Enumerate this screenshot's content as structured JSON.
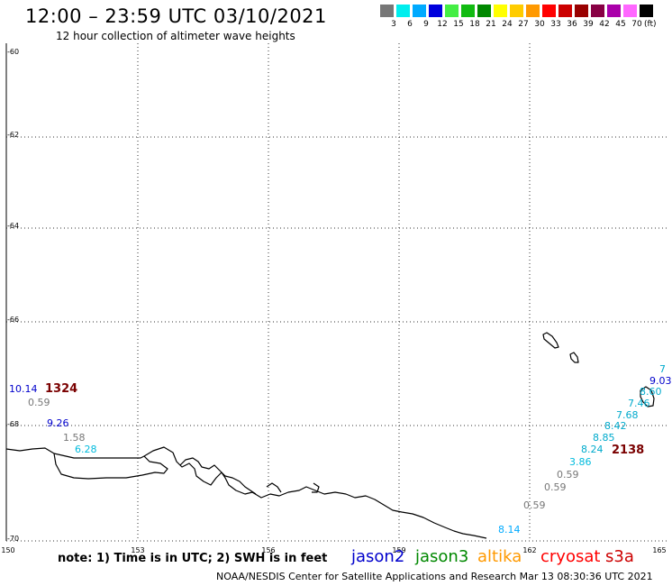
{
  "header": {
    "title": "12:00 – 23:59 UTC 03/10/2021",
    "subtitle": "12 hour collection of altimeter wave heights"
  },
  "legend": {
    "swatches": [
      {
        "label": "3",
        "color": "#777777"
      },
      {
        "label": "6",
        "color": "#00eeee"
      },
      {
        "label": "9",
        "color": "#00aaff"
      },
      {
        "label": "12",
        "color": "#0000dd"
      },
      {
        "label": "15",
        "color": "#44ee44"
      },
      {
        "label": "18",
        "color": "#11bb11"
      },
      {
        "label": "21",
        "color": "#008800"
      },
      {
        "label": "24",
        "color": "#ffff00"
      },
      {
        "label": "27",
        "color": "#ffcc00"
      },
      {
        "label": "30",
        "color": "#ff9900"
      },
      {
        "label": "33",
        "color": "#ff0000"
      },
      {
        "label": "36",
        "color": "#cc0000"
      },
      {
        "label": "39",
        "color": "#990000"
      },
      {
        "label": "42",
        "color": "#880044"
      },
      {
        "label": "45",
        "color": "#aa00aa"
      },
      {
        "label": "70",
        "color": "#ff66ff"
      },
      {
        "label": "",
        "color": "#000000"
      }
    ],
    "unit": "(ft)"
  },
  "axes": {
    "lat_labels": [
      "-60",
      "-62",
      "-64",
      "-66",
      "-68",
      "-70"
    ],
    "lon_labels": [
      "150",
      "153",
      "156",
      "159",
      "162",
      "165"
    ]
  },
  "observations": [
    {
      "value": "10.14",
      "color": "#0000cc"
    },
    {
      "value": "0.59",
      "color": "#777777"
    },
    {
      "value": "9.26",
      "color": "#0000cc"
    },
    {
      "value": "1.58",
      "color": "#777777"
    },
    {
      "value": "6.28",
      "color": "#00bbdd"
    },
    {
      "value": "8.14",
      "color": "#00aaff"
    },
    {
      "value": "0.59",
      "color": "#777777"
    },
    {
      "value": "0.59",
      "color": "#777777"
    },
    {
      "value": "0.59",
      "color": "#777777"
    },
    {
      "value": "3.86",
      "color": "#00bbdd"
    },
    {
      "value": "8.24",
      "color": "#00aacc"
    },
    {
      "value": "8.85",
      "color": "#00aacc"
    },
    {
      "value": "8.42",
      "color": "#00aacc"
    },
    {
      "value": "7.68",
      "color": "#00aacc"
    },
    {
      "value": "7.46",
      "color": "#00aacc"
    },
    {
      "value": "8.60",
      "color": "#00aacc"
    },
    {
      "value": "9.03",
      "color": "#0000cc"
    },
    {
      "value": "7",
      "color": "#00aacc"
    }
  ],
  "passes": [
    "1324",
    "2138"
  ],
  "footer": {
    "note": "note: 1) Time is in UTC; 2) SWH is in feet",
    "satellites": [
      {
        "name": "jason2",
        "color": "#0000cc"
      },
      {
        "name": "jason3",
        "color": "#008800"
      },
      {
        "name": "altika",
        "color": "#ff9900"
      },
      {
        "name": "cryosat",
        "color": "#ff0000"
      },
      {
        "name": "s3a",
        "color": "#cc0000"
      }
    ],
    "credit": "NOAA/NESDIS Center for Satellite Applications and Research    Mar 13 08:30:36 UTC 2021"
  }
}
